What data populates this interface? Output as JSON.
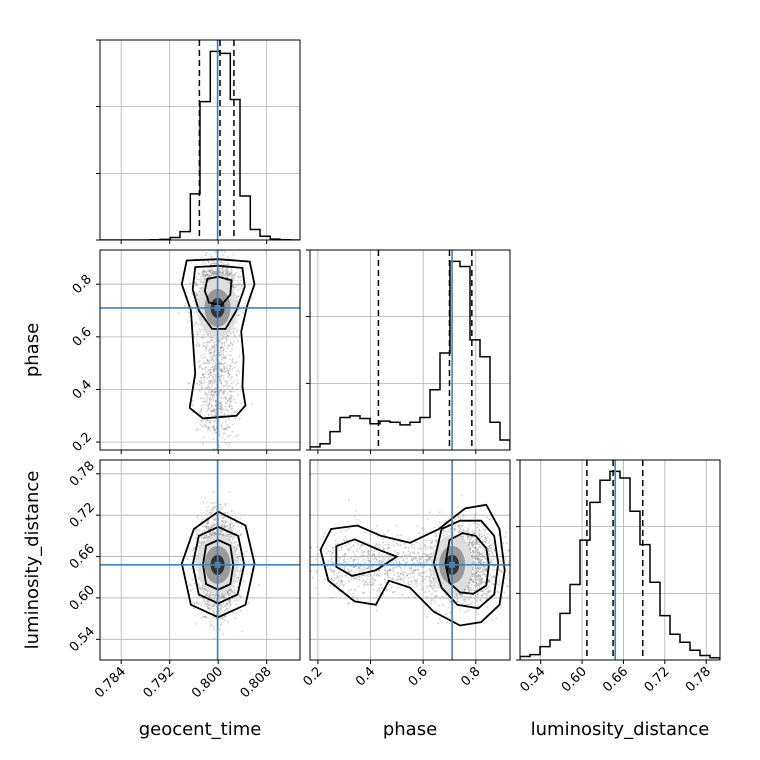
{
  "chart_data": {
    "type": "corner",
    "parameters": [
      "geocent_time",
      "phase",
      "luminosity_distance"
    ],
    "truths": {
      "geocent_time": 0.7999,
      "phase": 0.71,
      "luminosity_distance": 0.648
    },
    "quantiles": {
      "geocent_time": [
        0.7969,
        0.8003,
        0.8026
      ],
      "phase": [
        0.43,
        0.7,
        0.785
      ],
      "luminosity_distance": [
        0.607,
        0.645,
        0.688
      ]
    },
    "ranges": {
      "geocent_time": [
        0.7805,
        0.8135
      ],
      "phase": [
        0.17,
        0.93
      ],
      "luminosity_distance": [
        0.51,
        0.8
      ]
    },
    "ticks": {
      "geocent_time": [
        "0.784",
        "0.792",
        "0.800",
        "0.808"
      ],
      "phase": [
        "0.2",
        "0.4",
        "0.6",
        "0.8"
      ],
      "luminosity_distance": [
        "0.54",
        "0.60",
        "0.66",
        "0.72",
        "0.78"
      ]
    },
    "histograms": {
      "geocent_time": {
        "edges": [
          0.7805,
          0.7822,
          0.7838,
          0.7855,
          0.7871,
          0.7888,
          0.7904,
          0.7921,
          0.7937,
          0.7954,
          0.797,
          0.7987,
          0.8003,
          0.802,
          0.8036,
          0.8053,
          0.8069,
          0.8086,
          0.8102,
          0.8119,
          0.8135
        ],
        "counts": [
          0,
          0,
          0,
          0,
          0,
          1,
          3,
          12,
          40,
          220,
          660,
          900,
          890,
          670,
          210,
          50,
          18,
          4,
          1,
          0
        ]
      },
      "phase": {
        "edges": [
          0.17,
          0.208,
          0.246,
          0.284,
          0.322,
          0.36,
          0.398,
          0.436,
          0.474,
          0.512,
          0.55,
          0.588,
          0.626,
          0.664,
          0.702,
          0.74,
          0.778,
          0.816,
          0.854,
          0.892,
          0.93
        ],
        "counts": [
          6,
          12,
          35,
          62,
          65,
          60,
          50,
          55,
          53,
          48,
          53,
          62,
          115,
          185,
          360,
          350,
          210,
          178,
          53,
          19
        ]
      },
      "luminosity_distance": {
        "edges": [
          0.51,
          0.5245,
          0.539,
          0.5535,
          0.568,
          0.5825,
          0.597,
          0.6115,
          0.626,
          0.6405,
          0.655,
          0.6695,
          0.684,
          0.6985,
          0.713,
          0.7275,
          0.742,
          0.7565,
          0.771,
          0.7855,
          0.8
        ],
        "counts": [
          8,
          12,
          30,
          45,
          105,
          170,
          270,
          355,
          405,
          425,
          410,
          335,
          260,
          175,
          100,
          58,
          40,
          22,
          10,
          5
        ]
      }
    },
    "contours_2d": {
      "phase_vs_geocent_time": [
        [
          [
            0.7948,
            0.89
          ],
          [
            0.8,
            0.895
          ],
          [
            0.8052,
            0.886
          ],
          [
            0.806,
            0.8
          ],
          [
            0.8048,
            0.72
          ],
          [
            0.8038,
            0.62
          ],
          [
            0.8042,
            0.52
          ],
          [
            0.804,
            0.41
          ],
          [
            0.8045,
            0.34
          ],
          [
            0.803,
            0.3
          ],
          [
            0.7975,
            0.29
          ],
          [
            0.7953,
            0.33
          ],
          [
            0.7962,
            0.46
          ],
          [
            0.7958,
            0.6
          ],
          [
            0.7955,
            0.7
          ],
          [
            0.794,
            0.8
          ]
        ],
        [
          [
            0.7962,
            0.865
          ],
          [
            0.8,
            0.87
          ],
          [
            0.804,
            0.862
          ],
          [
            0.8044,
            0.79
          ],
          [
            0.803,
            0.7
          ],
          [
            0.8012,
            0.63
          ],
          [
            0.799,
            0.63
          ],
          [
            0.7968,
            0.7
          ],
          [
            0.7958,
            0.78
          ]
        ],
        [
          [
            0.7982,
            0.82
          ],
          [
            0.8,
            0.828
          ],
          [
            0.8022,
            0.815
          ],
          [
            0.802,
            0.76
          ],
          [
            0.8005,
            0.72
          ],
          [
            0.7985,
            0.73
          ],
          [
            0.7978,
            0.775
          ]
        ]
      ],
      "luminosity_distance_vs_geocent_time": [
        [
          [
            0.796,
            0.7
          ],
          [
            0.8,
            0.725
          ],
          [
            0.8045,
            0.705
          ],
          [
            0.806,
            0.65
          ],
          [
            0.8045,
            0.59
          ],
          [
            0.8,
            0.572
          ],
          [
            0.7955,
            0.59
          ],
          [
            0.794,
            0.65
          ]
        ],
        [
          [
            0.7968,
            0.69
          ],
          [
            0.8,
            0.703
          ],
          [
            0.8033,
            0.69
          ],
          [
            0.8043,
            0.648
          ],
          [
            0.8032,
            0.605
          ],
          [
            0.8,
            0.592
          ],
          [
            0.7968,
            0.605
          ],
          [
            0.7958,
            0.648
          ]
        ],
        [
          [
            0.798,
            0.676
          ],
          [
            0.8,
            0.684
          ],
          [
            0.802,
            0.676
          ],
          [
            0.8025,
            0.648
          ],
          [
            0.802,
            0.62
          ],
          [
            0.8,
            0.612
          ],
          [
            0.798,
            0.62
          ],
          [
            0.7975,
            0.648
          ]
        ]
      ],
      "luminosity_distance_vs_phase": [
        [
          [
            0.25,
            0.7
          ],
          [
            0.35,
            0.705
          ],
          [
            0.44,
            0.69
          ],
          [
            0.55,
            0.68
          ],
          [
            0.66,
            0.7
          ],
          [
            0.76,
            0.73
          ],
          [
            0.84,
            0.735
          ],
          [
            0.89,
            0.7
          ],
          [
            0.91,
            0.64
          ],
          [
            0.89,
            0.59
          ],
          [
            0.82,
            0.565
          ],
          [
            0.74,
            0.56
          ],
          [
            0.64,
            0.58
          ],
          [
            0.55,
            0.615
          ],
          [
            0.47,
            0.625
          ],
          [
            0.42,
            0.59
          ],
          [
            0.34,
            0.595
          ],
          [
            0.24,
            0.625
          ],
          [
            0.21,
            0.67
          ]
        ],
        [
          [
            0.67,
            0.7
          ],
          [
            0.74,
            0.712
          ],
          [
            0.82,
            0.712
          ],
          [
            0.87,
            0.69
          ],
          [
            0.885,
            0.65
          ],
          [
            0.87,
            0.605
          ],
          [
            0.81,
            0.585
          ],
          [
            0.73,
            0.59
          ],
          [
            0.67,
            0.615
          ],
          [
            0.64,
            0.65
          ]
        ],
        [
          [
            0.7,
            0.684
          ],
          [
            0.75,
            0.694
          ],
          [
            0.8,
            0.69
          ],
          [
            0.84,
            0.672
          ],
          [
            0.85,
            0.648
          ],
          [
            0.84,
            0.618
          ],
          [
            0.79,
            0.606
          ],
          [
            0.74,
            0.608
          ],
          [
            0.7,
            0.622
          ],
          [
            0.685,
            0.65
          ]
        ],
        [
          [
            0.27,
            0.675
          ],
          [
            0.34,
            0.685
          ],
          [
            0.43,
            0.67
          ],
          [
            0.5,
            0.66
          ],
          [
            0.42,
            0.64
          ],
          [
            0.33,
            0.632
          ],
          [
            0.27,
            0.645
          ]
        ]
      ]
    }
  }
}
